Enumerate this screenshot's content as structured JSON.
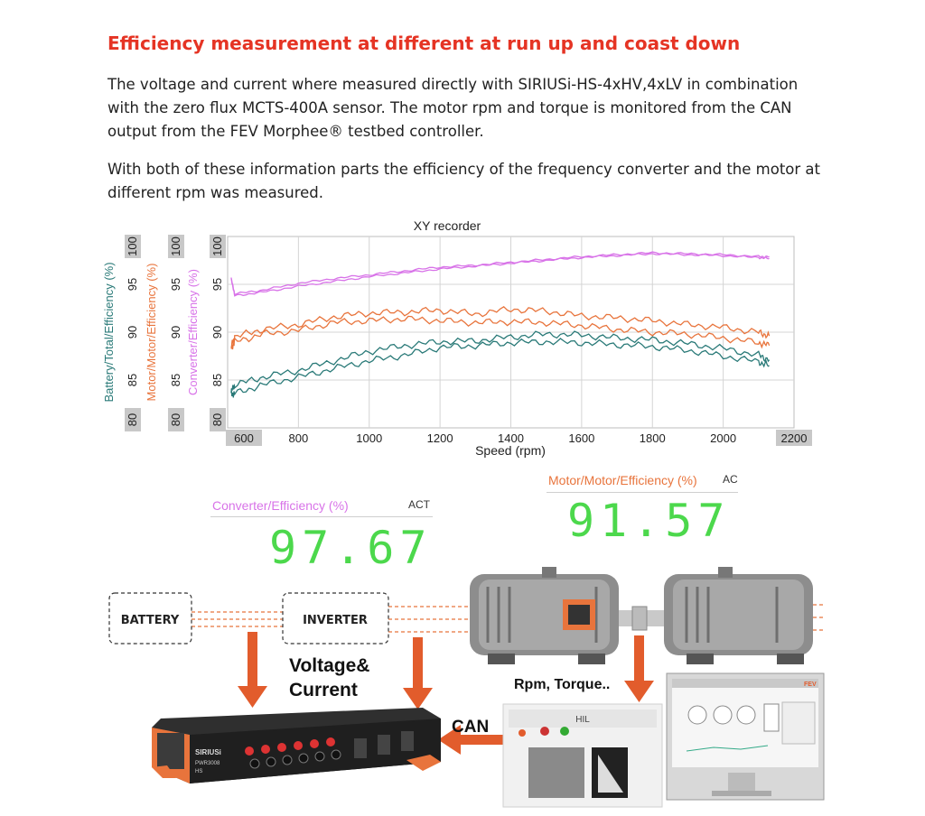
{
  "heading": "Efficiency measurement at different at run up and coast down",
  "paragraph_1": "The voltage and current where measured directly with SIRIUSi-HS-4xHV,4xLV in combination with the zero flux MCTS-400A sensor. The motor rpm and torque is monitored from the CAN output from the FEV Morphee® testbed controller.",
  "paragraph_2": "With both of these information parts the efficiency of the frequency converter and the motor at different rpm was measured.",
  "colors": {
    "heading": "#e53424",
    "battery_series": "#2a7a78",
    "motor_series": "#e8743c",
    "converter_series": "#d873e8",
    "digital_value": "#4cd84c",
    "arrow": "#e25c2c"
  },
  "chart_data": {
    "type": "line",
    "title": "XY recorder",
    "xlabel": "Speed (rpm)",
    "xlim": [
      600,
      2200
    ],
    "x_ticks": [
      "600",
      "800",
      "1000",
      "1200",
      "1400",
      "1600",
      "1800",
      "2000",
      "2200"
    ],
    "y_ticks": [
      "80",
      "85",
      "90",
      "95",
      "100"
    ],
    "grid": true,
    "axes": [
      {
        "label": "Battery/Total/Efficiency (%)",
        "ylim": [
          80,
          100
        ],
        "color": "#2a7a78"
      },
      {
        "label": "Motor/Motor/Efficiency (%)",
        "ylim": [
          80,
          100
        ],
        "color": "#e8743c"
      },
      {
        "label": "Converter/Efficiency (%)",
        "ylim": [
          80,
          100
        ],
        "color": "#d873e8"
      }
    ],
    "series": [
      {
        "axis": 2,
        "x": [
          610,
          620,
          700,
          800,
          900,
          1000,
          1100,
          1200,
          1300,
          1400,
          1500,
          1600,
          1700,
          1800,
          1900,
          2000,
          2100,
          2130
        ],
        "run_up": [
          95.6,
          94.0,
          94.4,
          95.1,
          95.6,
          96.0,
          96.4,
          96.8,
          97.0,
          97.3,
          97.6,
          97.9,
          98.1,
          98.3,
          98.2,
          98.1,
          97.9,
          97.9
        ],
        "coast_down": [
          95.6,
          93.8,
          94.2,
          94.8,
          95.3,
          95.8,
          96.2,
          96.6,
          96.9,
          97.2,
          97.5,
          97.8,
          98.0,
          98.2,
          98.1,
          98.0,
          97.8,
          97.7
        ]
      },
      {
        "axis": 1,
        "x": [
          610,
          620,
          700,
          800,
          900,
          1000,
          1100,
          1200,
          1300,
          1400,
          1500,
          1600,
          1700,
          1800,
          1900,
          2000,
          2100,
          2130
        ],
        "run_up": [
          88.5,
          89.5,
          90.3,
          90.8,
          91.6,
          92.0,
          92.1,
          92.3,
          91.9,
          92.4,
          92.2,
          91.7,
          91.5,
          91.2,
          90.8,
          90.5,
          90.0,
          89.6
        ],
        "coast_down": [
          88.3,
          89.0,
          89.8,
          90.2,
          91.0,
          91.2,
          91.4,
          91.2,
          91.0,
          91.1,
          91.0,
          90.7,
          90.3,
          90.0,
          89.8,
          89.4,
          88.9,
          88.6
        ]
      },
      {
        "axis": 0,
        "x": [
          610,
          620,
          700,
          800,
          900,
          1000,
          1100,
          1200,
          1300,
          1400,
          1500,
          1600,
          1700,
          1800,
          1900,
          2000,
          2100,
          2130
        ],
        "run_up": [
          83.8,
          84.5,
          85.3,
          86.0,
          87.0,
          88.0,
          88.6,
          89.0,
          89.1,
          89.5,
          89.8,
          89.7,
          89.4,
          89.2,
          88.8,
          88.3,
          87.6,
          87.1
        ],
        "coast_down": [
          83.5,
          83.6,
          84.5,
          85.3,
          86.2,
          87.0,
          87.6,
          88.4,
          88.6,
          88.9,
          89.0,
          88.9,
          88.7,
          88.5,
          88.1,
          87.5,
          86.9,
          86.5
        ]
      }
    ]
  },
  "displays": {
    "converter": {
      "title": "Converter/Efficiency (%)",
      "unit": "ACT",
      "value": "97.67"
    },
    "motor": {
      "title": "Motor/Motor/Efficiency (%)",
      "unit": "AC",
      "value": "91.57"
    }
  },
  "diagram": {
    "battery_label": "BATTERY",
    "inverter_label": "INVERTER",
    "voltage_label_1": "Voltage&",
    "voltage_label_2": "Current",
    "can_label": "CAN",
    "rpm_label": "Rpm, Torque..",
    "sirius_brand": "SIRIUSi",
    "sirius_model": "PWR3008",
    "sirius_hs": "HS",
    "hil_label": "HIL",
    "screen_brand": "FEV"
  }
}
